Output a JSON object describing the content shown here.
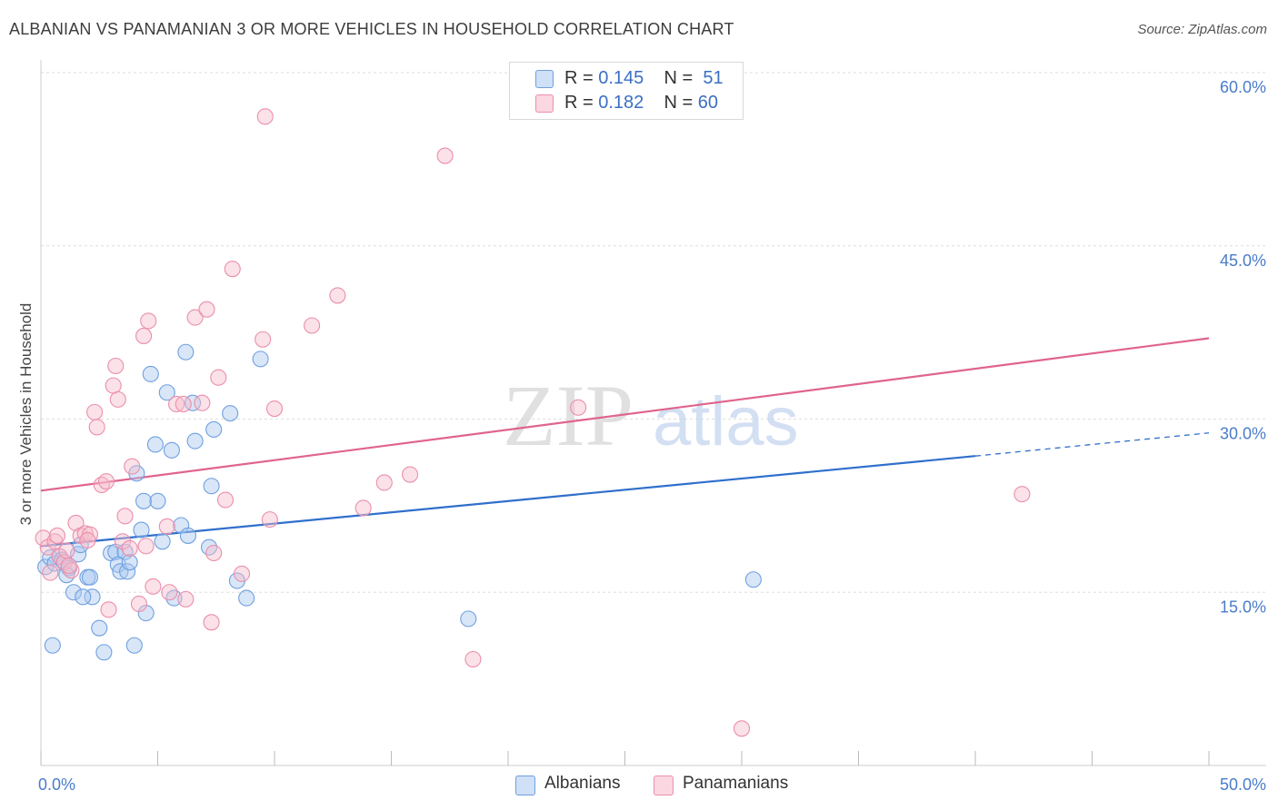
{
  "title": "ALBANIAN VS PANAMANIAN 3 OR MORE VEHICLES IN HOUSEHOLD CORRELATION CHART",
  "source": "Source: ZipAtlas.com",
  "watermark": {
    "zip": "ZIP",
    "atlas": "atlas"
  },
  "legend_top": {
    "rows": [
      {
        "r_label": "R = ",
        "r_value": "0.145",
        "n_label": "N = ",
        "n_value": "51",
        "color": "#a9c8f0"
      },
      {
        "r_label": "R = ",
        "r_value": "0.182",
        "n_label": "N = ",
        "n_value": "60",
        "color": "#f6bccd"
      }
    ]
  },
  "legend_bottom": [
    {
      "label": "Albanians",
      "color": "#a9c8f0"
    },
    {
      "label": "Panamanians",
      "color": "#f6bccd"
    }
  ],
  "chart_data": {
    "type": "scatter",
    "title": "ALBANIAN VS PANAMANIAN 3 OR MORE VEHICLES IN HOUSEHOLD CORRELATION CHART",
    "xlabel": "",
    "ylabel": "3 or more Vehicles in Household",
    "xlim": [
      0,
      50
    ],
    "ylim": [
      0,
      60
    ],
    "x_tick_labels": [
      "0.0%",
      "50.0%"
    ],
    "y_ticks": [
      15,
      30,
      45,
      60
    ],
    "y_tick_labels": [
      "15.0%",
      "30.0%",
      "45.0%",
      "60.0%"
    ],
    "grid": true,
    "legend_position": "top-center",
    "series": [
      {
        "name": "Albanians",
        "color": "#6fa0e0",
        "fill": "#a9c8f0",
        "trend": {
          "x": [
            0,
            40
          ],
          "y": [
            19.0,
            26.8
          ],
          "dashed_extension_to_x": 50,
          "dashed_end_y": 28.8,
          "color": "#2f6fcc"
        },
        "points": [
          [
            0.2,
            17.2
          ],
          [
            0.4,
            18.0
          ],
          [
            0.6,
            17.5
          ],
          [
            0.8,
            18.1
          ],
          [
            0.9,
            17.8
          ],
          [
            1.0,
            17.6
          ],
          [
            1.2,
            17.1
          ],
          [
            1.1,
            16.5
          ],
          [
            1.4,
            15.0
          ],
          [
            1.6,
            18.3
          ],
          [
            1.7,
            19.1
          ],
          [
            2.0,
            16.3
          ],
          [
            2.1,
            16.3
          ],
          [
            2.2,
            14.6
          ],
          [
            1.8,
            14.6
          ],
          [
            2.5,
            11.9
          ],
          [
            0.5,
            10.4
          ],
          [
            2.7,
            9.8
          ],
          [
            3.0,
            18.4
          ],
          [
            3.2,
            18.5
          ],
          [
            3.3,
            17.4
          ],
          [
            3.4,
            16.8
          ],
          [
            3.6,
            18.5
          ],
          [
            3.7,
            16.8
          ],
          [
            3.8,
            17.6
          ],
          [
            4.1,
            25.3
          ],
          [
            4.3,
            20.4
          ],
          [
            4.4,
            22.9
          ],
          [
            4.5,
            13.2
          ],
          [
            4.0,
            10.4
          ],
          [
            4.7,
            33.9
          ],
          [
            4.9,
            27.8
          ],
          [
            5.0,
            22.9
          ],
          [
            5.2,
            19.4
          ],
          [
            5.4,
            32.3
          ],
          [
            5.6,
            27.3
          ],
          [
            5.7,
            14.5
          ],
          [
            6.0,
            20.8
          ],
          [
            6.2,
            35.8
          ],
          [
            6.3,
            19.9
          ],
          [
            6.5,
            31.4
          ],
          [
            6.6,
            28.1
          ],
          [
            7.3,
            24.2
          ],
          [
            7.4,
            29.1
          ],
          [
            7.2,
            18.9
          ],
          [
            8.1,
            30.5
          ],
          [
            8.4,
            16.0
          ],
          [
            8.8,
            14.5
          ],
          [
            9.4,
            35.2
          ],
          [
            18.3,
            12.7
          ],
          [
            30.5,
            16.1
          ]
        ]
      },
      {
        "name": "Panamanians",
        "color": "#ea8fab",
        "fill": "#f6bccd",
        "trend": {
          "x": [
            0,
            50
          ],
          "y": [
            23.8,
            37.0
          ],
          "color": "#e0648c"
        },
        "points": [
          [
            0.1,
            19.7
          ],
          [
            0.3,
            18.9
          ],
          [
            0.4,
            16.7
          ],
          [
            0.6,
            19.4
          ],
          [
            0.7,
            19.9
          ],
          [
            0.8,
            18.1
          ],
          [
            1.0,
            17.6
          ],
          [
            1.1,
            18.6
          ],
          [
            1.3,
            16.9
          ],
          [
            1.5,
            21.0
          ],
          [
            1.7,
            19.9
          ],
          [
            1.9,
            20.1
          ],
          [
            2.1,
            20.0
          ],
          [
            2.3,
            30.6
          ],
          [
            2.4,
            29.3
          ],
          [
            2.6,
            24.3
          ],
          [
            2.8,
            24.6
          ],
          [
            2.9,
            13.5
          ],
          [
            3.1,
            32.9
          ],
          [
            3.2,
            34.6
          ],
          [
            3.3,
            31.7
          ],
          [
            3.5,
            19.4
          ],
          [
            3.6,
            21.6
          ],
          [
            3.8,
            18.8
          ],
          [
            3.9,
            25.9
          ],
          [
            4.2,
            14.0
          ],
          [
            4.4,
            37.2
          ],
          [
            4.5,
            19.0
          ],
          [
            4.6,
            38.5
          ],
          [
            4.8,
            15.5
          ],
          [
            5.4,
            20.7
          ],
          [
            5.5,
            15.0
          ],
          [
            5.8,
            31.3
          ],
          [
            6.1,
            31.3
          ],
          [
            6.2,
            14.4
          ],
          [
            6.6,
            38.8
          ],
          [
            6.9,
            31.4
          ],
          [
            7.1,
            39.5
          ],
          [
            7.3,
            12.4
          ],
          [
            7.4,
            18.4
          ],
          [
            7.6,
            33.6
          ],
          [
            7.9,
            23.0
          ],
          [
            8.2,
            43.0
          ],
          [
            8.6,
            16.6
          ],
          [
            9.5,
            36.9
          ],
          [
            9.6,
            56.2
          ],
          [
            9.8,
            21.3
          ],
          [
            10.0,
            30.9
          ],
          [
            11.6,
            38.1
          ],
          [
            12.7,
            40.7
          ],
          [
            13.8,
            22.3
          ],
          [
            14.7,
            24.5
          ],
          [
            15.8,
            25.2
          ],
          [
            17.3,
            52.8
          ],
          [
            18.5,
            9.2
          ],
          [
            23.0,
            31.0
          ],
          [
            30.0,
            3.2
          ],
          [
            42.0,
            23.5
          ],
          [
            2.0,
            19.5
          ],
          [
            1.2,
            17.3
          ]
        ]
      }
    ]
  }
}
